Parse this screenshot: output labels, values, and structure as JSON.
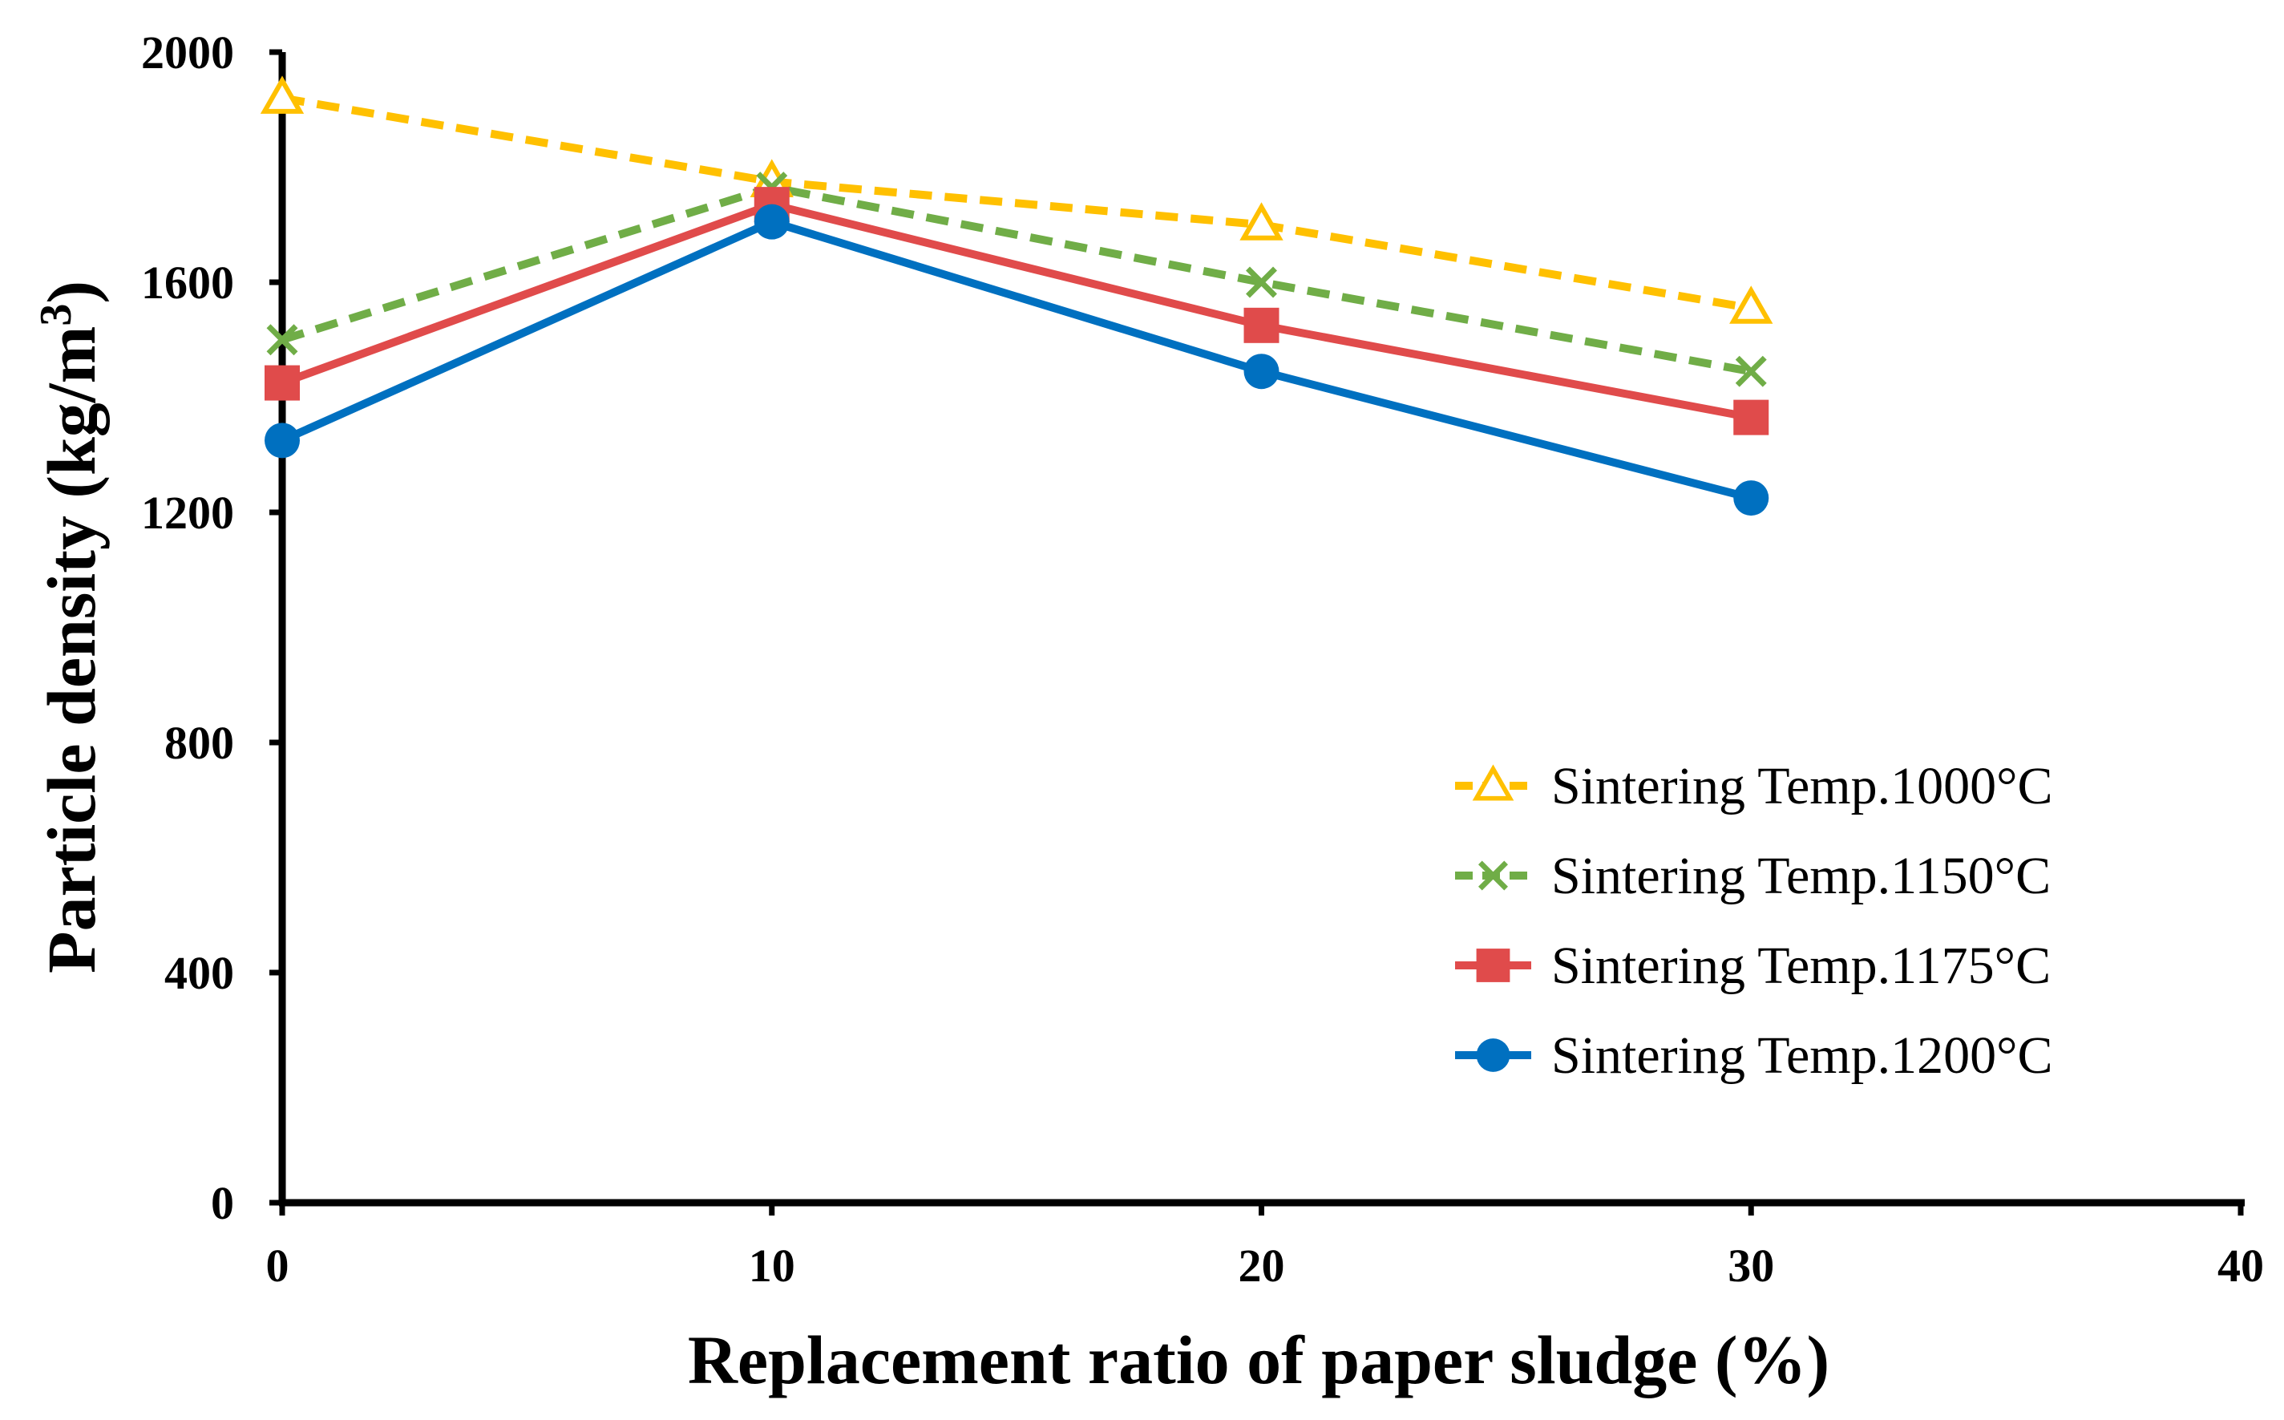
{
  "chart_data": {
    "type": "line",
    "title": "",
    "xlabel": "Replacement ratio of paper sludge (%)",
    "ylabel_main": "Particle density (kg/m",
    "ylabel_sup": "3",
    "ylabel_close": ")",
    "xlim": [
      0,
      40
    ],
    "ylim": [
      0,
      2000
    ],
    "x_ticks": [
      "0",
      "10",
      "20",
      "30",
      "40"
    ],
    "y_ticks": [
      "0",
      "400",
      "800",
      "1200",
      "1600",
      "2000"
    ],
    "grid": false,
    "legend_position": "center-right",
    "x": [
      0,
      10,
      20,
      30
    ],
    "series": [
      {
        "name": "Sintering Temp.1000°C",
        "values": [
          1920,
          1775,
          1700,
          1555
        ],
        "color": "#FFC000",
        "dash": "dashed",
        "marker": "triangle-open"
      },
      {
        "name": "Sintering Temp.1150°C",
        "values": [
          1500,
          1765,
          1600,
          1445
        ],
        "color": "#70AD47",
        "dash": "dashed",
        "marker": "x"
      },
      {
        "name": "Sintering Temp.1175°C",
        "values": [
          1425,
          1735,
          1525,
          1365
        ],
        "color": "#E04B4B",
        "dash": "solid",
        "marker": "square"
      },
      {
        "name": "Sintering Temp.1200°C",
        "values": [
          1325,
          1705,
          1445,
          1225
        ],
        "color": "#0070C0",
        "dash": "solid",
        "marker": "circle"
      }
    ]
  }
}
